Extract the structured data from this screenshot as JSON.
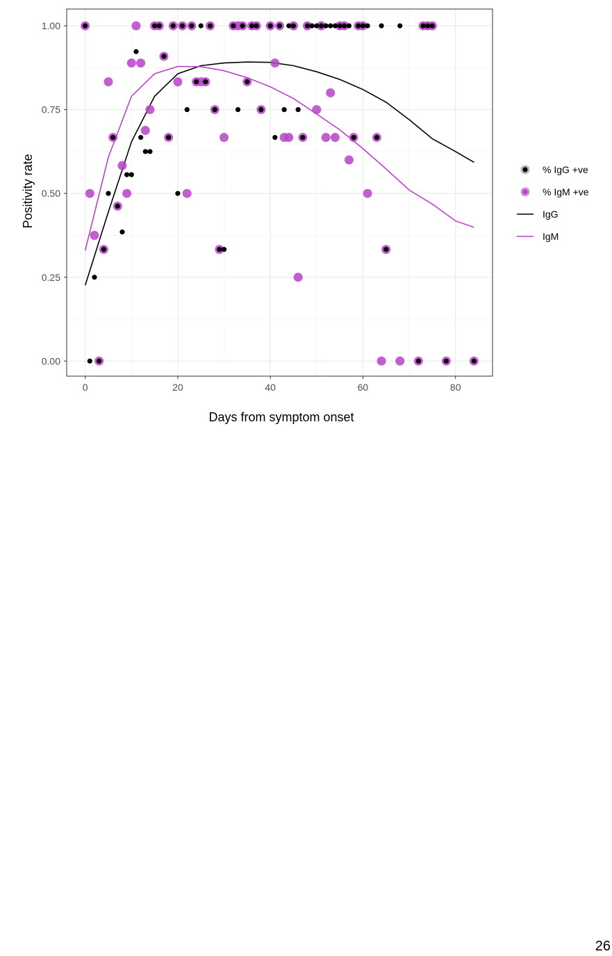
{
  "page_number": "26",
  "chart_data": {
    "type": "scatter",
    "xlabel": "Days from symptom onset",
    "ylabel": "Positivity rate",
    "xlim": [
      -4,
      88
    ],
    "ylim": [
      -0.045,
      1.05
    ],
    "xticks": [
      0,
      20,
      40,
      60,
      80
    ],
    "xtick_labels": [
      "0",
      "20",
      "40",
      "60",
      "80"
    ],
    "yticks": [
      0,
      0.25,
      0.5,
      0.75,
      1
    ],
    "ytick_labels": [
      "0.00",
      "0.25",
      "0.50",
      "0.75",
      "1.00"
    ],
    "grid": true,
    "legend_position": "right",
    "colors": {
      "igg": "#000000",
      "igm": "#b942c9",
      "panel_border": "#333333",
      "grid": "#ebebeb"
    },
    "series": [
      {
        "name": "% IgG +ve",
        "kind": "points",
        "points": [
          [
            0,
            1
          ],
          [
            1,
            0
          ],
          [
            2,
            0.25
          ],
          [
            3,
            0
          ],
          [
            4,
            0.333
          ],
          [
            5,
            0.5
          ],
          [
            6,
            0.667
          ],
          [
            7,
            0.462
          ],
          [
            8,
            0.385
          ],
          [
            9,
            0.556
          ],
          [
            10,
            0.556
          ],
          [
            11,
            0.923
          ],
          [
            12,
            0.667
          ],
          [
            13,
            0.625
          ],
          [
            14,
            0.625
          ],
          [
            15,
            1
          ],
          [
            16,
            1
          ],
          [
            17,
            0.909
          ],
          [
            18,
            0.667
          ],
          [
            19,
            1
          ],
          [
            20,
            0.5
          ],
          [
            21,
            1
          ],
          [
            22,
            0.75
          ],
          [
            23,
            1
          ],
          [
            24,
            0.833
          ],
          [
            25,
            1
          ],
          [
            26,
            0.833
          ],
          [
            27,
            1
          ],
          [
            28,
            0.75
          ],
          [
            29,
            0.333
          ],
          [
            30,
            0.333
          ],
          [
            32,
            1
          ],
          [
            33,
            0.75
          ],
          [
            34,
            1
          ],
          [
            35,
            0.833
          ],
          [
            36,
            1
          ],
          [
            37,
            1
          ],
          [
            38,
            0.75
          ],
          [
            40,
            1
          ],
          [
            41,
            0.667
          ],
          [
            42,
            1
          ],
          [
            43,
            0.75
          ],
          [
            44,
            1
          ],
          [
            45,
            1
          ],
          [
            46,
            0.75
          ],
          [
            47,
            0.667
          ],
          [
            48,
            1
          ],
          [
            49,
            1
          ],
          [
            50,
            1
          ],
          [
            51,
            1
          ],
          [
            52,
            1
          ],
          [
            53,
            1
          ],
          [
            54,
            1
          ],
          [
            55,
            1
          ],
          [
            56,
            1
          ],
          [
            57,
            1
          ],
          [
            58,
            0.667
          ],
          [
            59,
            1
          ],
          [
            60,
            1
          ],
          [
            61,
            1
          ],
          [
            63,
            0.667
          ],
          [
            64,
            1
          ],
          [
            65,
            0.333
          ],
          [
            68,
            1
          ],
          [
            72,
            0
          ],
          [
            73,
            1
          ],
          [
            74,
            1
          ],
          [
            75,
            1
          ],
          [
            78,
            0
          ],
          [
            84,
            0
          ]
        ]
      },
      {
        "name": "% IgM +ve",
        "kind": "points",
        "points": [
          [
            0,
            1
          ],
          [
            1,
            0.5
          ],
          [
            2,
            0.375
          ],
          [
            3,
            0
          ],
          [
            4,
            0.333
          ],
          [
            5,
            0.833
          ],
          [
            6,
            0.667
          ],
          [
            7,
            0.462
          ],
          [
            8,
            0.583
          ],
          [
            9,
            0.5
          ],
          [
            10,
            0.889
          ],
          [
            11,
            1
          ],
          [
            12,
            0.889
          ],
          [
            13,
            0.688
          ],
          [
            14,
            0.75
          ],
          [
            15,
            1
          ],
          [
            16,
            1
          ],
          [
            17,
            0.909
          ],
          [
            18,
            0.667
          ],
          [
            19,
            1
          ],
          [
            20,
            0.833
          ],
          [
            21,
            1
          ],
          [
            22,
            0.5
          ],
          [
            23,
            1
          ],
          [
            24,
            0.833
          ],
          [
            25,
            0.833
          ],
          [
            26,
            0.833
          ],
          [
            27,
            1
          ],
          [
            28,
            0.75
          ],
          [
            29,
            0.333
          ],
          [
            30,
            0.667
          ],
          [
            32,
            1
          ],
          [
            33,
            1
          ],
          [
            34,
            1
          ],
          [
            35,
            0.833
          ],
          [
            36,
            1
          ],
          [
            37,
            1
          ],
          [
            38,
            0.75
          ],
          [
            40,
            1
          ],
          [
            41,
            0.889
          ],
          [
            42,
            1
          ],
          [
            43,
            0.667
          ],
          [
            44,
            0.667
          ],
          [
            45,
            1
          ],
          [
            46,
            0.25
          ],
          [
            47,
            0.667
          ],
          [
            48,
            1
          ],
          [
            50,
            0.75
          ],
          [
            51,
            1
          ],
          [
            52,
            0.667
          ],
          [
            53,
            0.8
          ],
          [
            54,
            0.667
          ],
          [
            55,
            1
          ],
          [
            56,
            1
          ],
          [
            57,
            0.6
          ],
          [
            58,
            0.667
          ],
          [
            59,
            1
          ],
          [
            60,
            1
          ],
          [
            61,
            0.5
          ],
          [
            63,
            0.667
          ],
          [
            64,
            0
          ],
          [
            65,
            0.333
          ],
          [
            68,
            0
          ],
          [
            72,
            0
          ],
          [
            73,
            1
          ],
          [
            74,
            1
          ],
          [
            75,
            1
          ],
          [
            78,
            0
          ],
          [
            84,
            0
          ]
        ]
      },
      {
        "name": "IgG",
        "kind": "line",
        "points": [
          [
            0,
            0.226
          ],
          [
            5,
            0.445
          ],
          [
            10,
            0.654
          ],
          [
            15,
            0.79
          ],
          [
            20,
            0.857
          ],
          [
            25,
            0.881
          ],
          [
            30,
            0.889
          ],
          [
            35,
            0.892
          ],
          [
            40,
            0.891
          ],
          [
            45,
            0.881
          ],
          [
            50,
            0.863
          ],
          [
            55,
            0.84
          ],
          [
            60,
            0.81
          ],
          [
            65,
            0.772
          ],
          [
            70,
            0.72
          ],
          [
            75,
            0.663
          ],
          [
            80,
            0.625
          ],
          [
            84,
            0.593
          ]
        ]
      },
      {
        "name": "IgM",
        "kind": "line",
        "points": [
          [
            0,
            0.33
          ],
          [
            5,
            0.608
          ],
          [
            10,
            0.79
          ],
          [
            15,
            0.857
          ],
          [
            20,
            0.879
          ],
          [
            25,
            0.878
          ],
          [
            30,
            0.866
          ],
          [
            35,
            0.845
          ],
          [
            40,
            0.818
          ],
          [
            45,
            0.783
          ],
          [
            50,
            0.737
          ],
          [
            55,
            0.69
          ],
          [
            60,
            0.634
          ],
          [
            65,
            0.573
          ],
          [
            70,
            0.51
          ],
          [
            75,
            0.468
          ],
          [
            80,
            0.418
          ],
          [
            84,
            0.399
          ]
        ]
      }
    ]
  }
}
